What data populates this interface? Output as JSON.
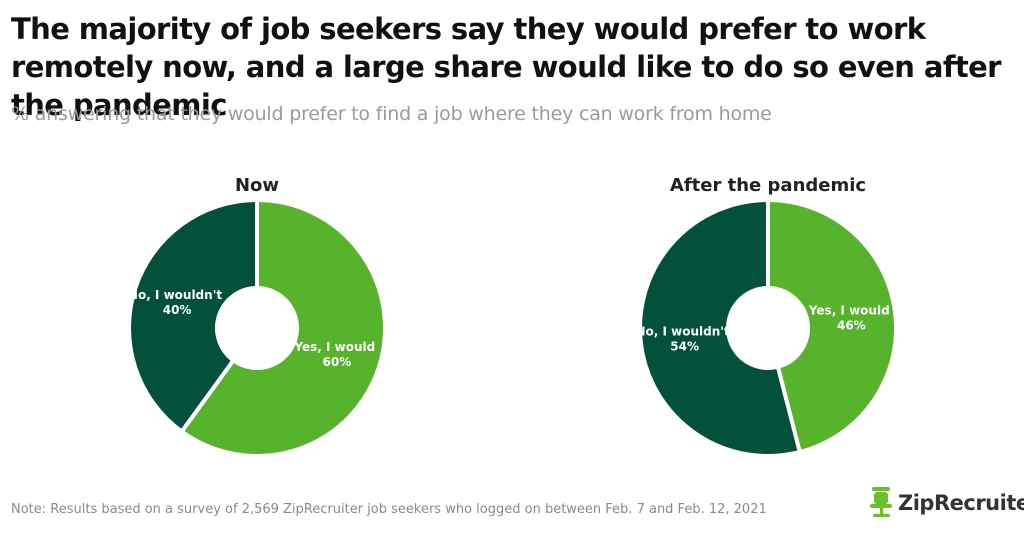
{
  "title": "The majority of job seekers say they would prefer to work remotely now, and a large share would like to do so even after the pandemic",
  "subtitle": "% answering that they would prefer to find a job where they can work from home",
  "footnote": "Note: Results based on a survey of 2,569 ZipRecruiter job seekers who logged on between Feb. 7 and Feb. 12, 2021",
  "logo": {
    "text": "ZipRecruiter",
    "mark": "®",
    "icon": "chair-icon"
  },
  "colors": {
    "no": "#03513a",
    "yes": "#57b22c"
  },
  "chart_data": [
    {
      "type": "pie",
      "title": "Now",
      "slices": [
        {
          "label": "No, I wouldn't",
          "value": 40,
          "value_text": "40%"
        },
        {
          "label": "Yes, I would",
          "value": 60,
          "value_text": "60%"
        }
      ]
    },
    {
      "type": "pie",
      "title": "After the pandemic",
      "slices": [
        {
          "label": "No, I wouldn't",
          "value": 54,
          "value_text": "54%"
        },
        {
          "label": "Yes, I would",
          "value": 46,
          "value_text": "46%"
        }
      ]
    }
  ]
}
